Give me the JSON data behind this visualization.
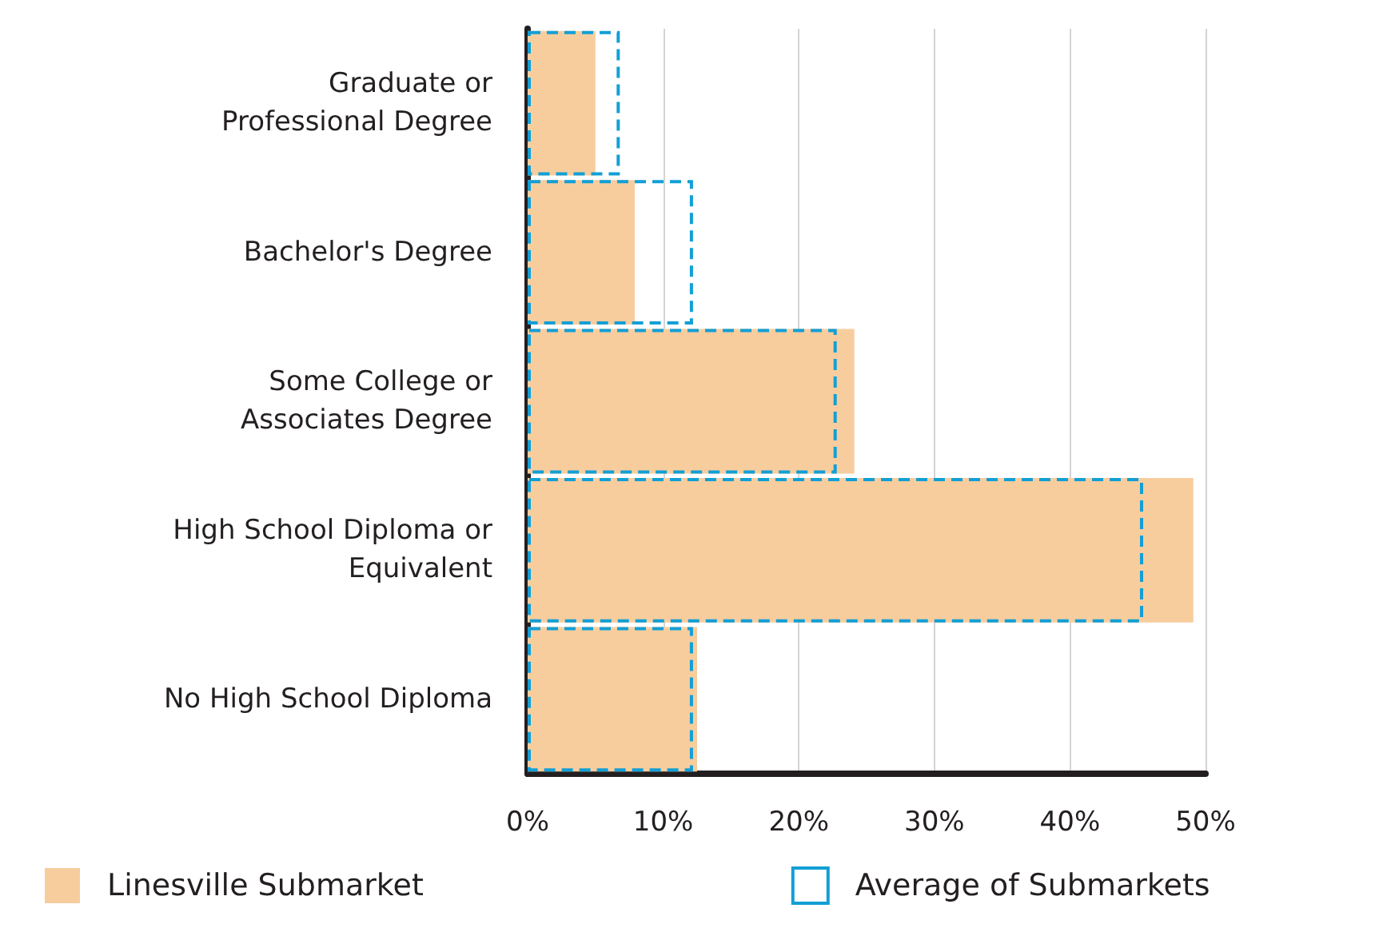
{
  "chart_data": {
    "type": "bar",
    "orientation": "horizontal",
    "categories": [
      "Graduate or\nProfessional Degree",
      "Bachelor's Degree",
      "Some College or\nAssociates Degree",
      "High School Diploma or\nEquivalent",
      "No High School Diploma"
    ],
    "series": [
      {
        "name": "Linesville Submarket",
        "color": "#f8cd9e",
        "values": [
          5.0,
          7.9,
          24.1,
          49.1,
          12.5
        ]
      },
      {
        "name": "Average of Submarkets",
        "color": "#129fd6",
        "line_style": "dashed",
        "values": [
          6.8,
          12.2,
          22.8,
          45.4,
          12.2
        ]
      }
    ],
    "xlim": [
      0,
      50
    ],
    "xticks": [
      {
        "value": 0,
        "label": "0%"
      },
      {
        "value": 10,
        "label": "10%"
      },
      {
        "value": 20,
        "label": "20%"
      },
      {
        "value": 30,
        "label": "30%"
      },
      {
        "value": 40,
        "label": "40%"
      },
      {
        "value": 50,
        "label": "50%"
      }
    ],
    "grid": "x",
    "legend": "bottom"
  }
}
